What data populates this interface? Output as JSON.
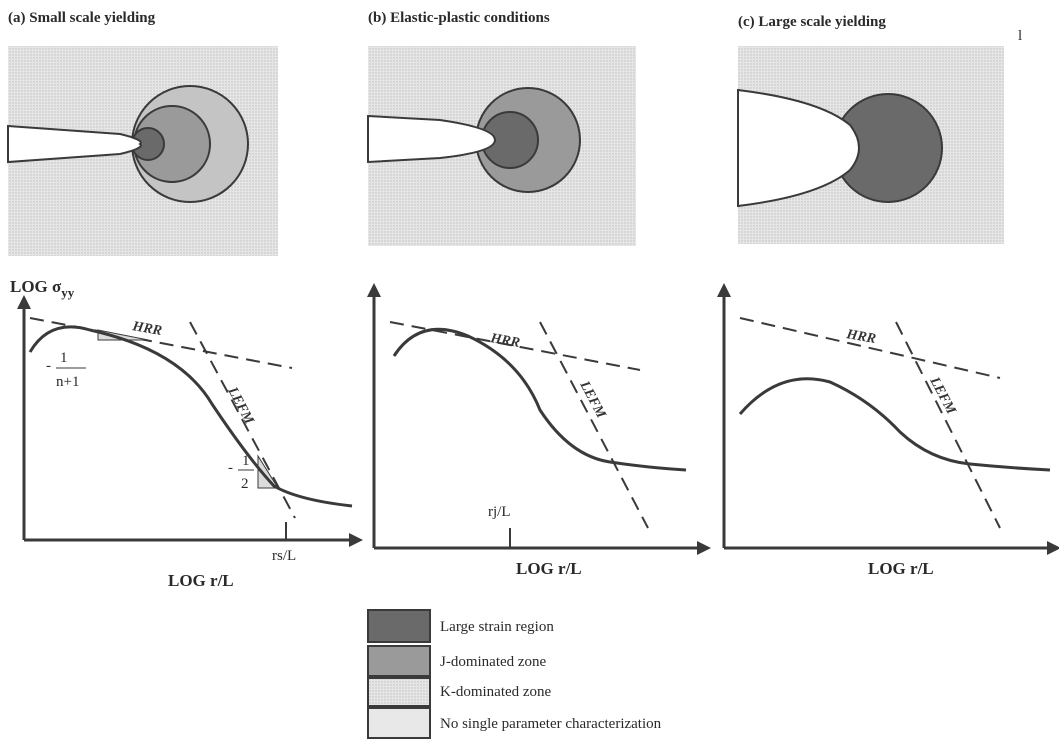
{
  "panels": [
    {
      "title": "(a)  Small scale yielding"
    },
    {
      "title": "(b)  Elastic-plastic conditions"
    },
    {
      "title": "(c)  Large scale yielding"
    }
  ],
  "plots": {
    "ylabel": "LOG σ",
    "ylabel_sub": "yy",
    "xlabel": "LOG r/L",
    "hrr_label": "HRR",
    "lefm_label": "LEFM",
    "slope_hrr_numer": "1",
    "slope_hrr_denom": "n+1",
    "slope_hrr_sign": "-",
    "slope_lefm_numer": "1",
    "slope_lefm_denom": "2",
    "slope_lefm_sign": "-",
    "rs_label": "rs/L",
    "rj_label": "rj/L"
  },
  "legend": {
    "items": [
      {
        "label": "Large strain region",
        "color": "#6a6a6a"
      },
      {
        "label": "J-dominated zone",
        "color": "#8e8e8e"
      },
      {
        "label": "K-dominated zone",
        "color": "#b8b8b8"
      },
      {
        "label": "No single parameter characterization",
        "color": "#dcdcdc"
      }
    ]
  },
  "colors": {
    "ink": "#3a3a3a",
    "large_strain": "#6a6a6a",
    "j_zone": "#8e8e8e",
    "k_zone": "#b8b8b8",
    "no_param": "#dcdcdc"
  },
  "page_mark": "l"
}
